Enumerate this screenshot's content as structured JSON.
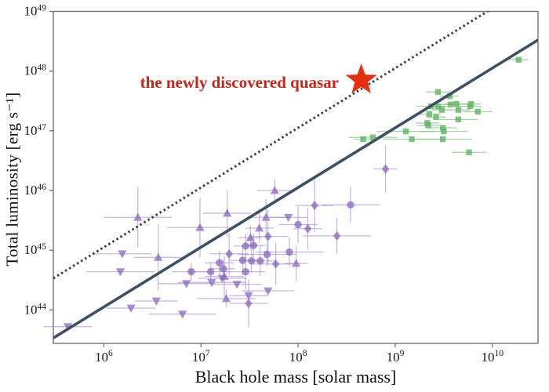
{
  "figure": {
    "background": "#ffffff",
    "axis_color": "#70707a",
    "tick_label_color": "#1a1a1a",
    "text_color": "#111111"
  },
  "chart_data": {
    "type": "scatter",
    "title": "",
    "xlabel": "Black hole mass [solar mass]",
    "ylabel": "Total luminosity [erg s⁻¹]",
    "x_scale": "log",
    "y_scale": "log",
    "xlim_log": [
      5.48,
      10.47
    ],
    "ylim_log": [
      43.44,
      49.0
    ],
    "x_tick_exponents": [
      6,
      7,
      8,
      9,
      10
    ],
    "y_tick_exponents": [
      44,
      45,
      46,
      47,
      48,
      49
    ],
    "grid": false,
    "legend": "none",
    "annotation": {
      "text": "the newly discovered quasar",
      "color": "#cb2315"
    },
    "highlight": {
      "name": "newly-discovered-quasar",
      "marker": "star",
      "logM": 8.65,
      "logL": 47.85,
      "color": "#e62e11",
      "outer_radius": 21
    },
    "reference_lines": [
      {
        "name": "eddington-line",
        "style": "solid",
        "slope": 1,
        "offset_log": 38.05,
        "color": "#3d5165",
        "width": 3.6
      },
      {
        "name": "ten-x-eddington-line",
        "style": "dotted",
        "slope": 1,
        "offset_log": 39.05,
        "color": "#3a4150",
        "width": 3.0
      }
    ],
    "series": [
      {
        "name": "agn-triangle-up",
        "marker": "triangle-up",
        "color": "#8763bb",
        "marker_opacity": 0.72,
        "errorbar_color": "#a18ad0",
        "errorbar_opacity": 0.6,
        "points": [
          [
            6.35,
            45.55,
            0.35,
            0.5
          ],
          [
            6.56,
            44.88,
            0.25,
            0.55
          ],
          [
            6.99,
            45.38,
            0.34,
            0.5
          ],
          [
            7.27,
            45.62,
            0.25,
            0.38
          ],
          [
            7.76,
            46.0,
            0.18,
            0.18
          ],
          [
            7.67,
            45.55,
            0.2,
            0.3
          ],
          [
            7.6,
            45.37,
            0.15,
            0.25
          ],
          [
            7.51,
            45.21,
            0.12,
            0.2
          ],
          [
            7.24,
            44.56,
            0.2,
            0.35
          ],
          [
            7.26,
            44.19,
            0.3,
            0.15
          ],
          [
            7.98,
            44.78,
            0.12,
            0.3
          ]
        ]
      },
      {
        "name": "agn-triangle-down",
        "marker": "triangle-down",
        "color": "#8763bb",
        "marker_opacity": 0.72,
        "errorbar_color": "#a18ad0",
        "errorbar_opacity": 0.6,
        "points": [
          [
            5.63,
            43.72,
            0.25,
            0
          ],
          [
            6.19,
            44.94,
            0.3,
            0
          ],
          [
            6.17,
            44.64,
            0.35,
            0
          ],
          [
            6.28,
            44.03,
            0.25,
            0
          ],
          [
            6.54,
            44.15,
            0.22,
            0
          ],
          [
            6.81,
            43.93,
            0.35,
            0
          ],
          [
            6.85,
            44.44,
            0.3,
            0
          ],
          [
            7.11,
            44.46,
            0.35,
            0
          ],
          [
            7.22,
            44.53,
            0.25,
            0
          ],
          [
            7.69,
            44.32,
            0.27,
            0
          ],
          [
            7.49,
            44.24,
            0.2,
            0
          ],
          [
            7.9,
            45.55,
            0.2,
            0
          ],
          [
            7.37,
            44.43,
            0.25,
            0
          ]
        ]
      },
      {
        "name": "agn-circle",
        "marker": "circle",
        "color": "#8763bb",
        "marker_opacity": 0.72,
        "errorbar_color": "#a18ad0",
        "errorbar_opacity": 0.6,
        "points": [
          [
            6.9,
            44.64,
            0.2,
            0.15
          ],
          [
            7.1,
            44.64,
            0.2,
            0.15
          ],
          [
            7.19,
            44.79,
            0.15,
            0.2
          ],
          [
            7.23,
            44.69,
            0.12,
            0.15
          ],
          [
            7.43,
            44.83,
            0.15,
            0.25
          ],
          [
            7.46,
            45.07,
            0.12,
            0.2
          ],
          [
            7.46,
            44.64,
            0.2,
            0.3
          ],
          [
            7.52,
            44.82,
            0.12,
            0.2
          ],
          [
            7.54,
            45.08,
            0.12,
            0.2
          ],
          [
            7.61,
            44.82,
            0.15,
            0.25
          ],
          [
            7.68,
            44.93,
            0.3,
            0.2
          ],
          [
            7.91,
            44.97,
            0.35,
            0.25
          ],
          [
            8.54,
            45.76,
            0.3,
            0.3
          ],
          [
            8.0,
            45.43,
            0.2,
            0.3
          ]
        ]
      },
      {
        "name": "agn-diamond",
        "marker": "diamond",
        "color": "#8763bb",
        "marker_opacity": 0.72,
        "errorbar_color": "#a18ad0",
        "errorbar_opacity": 0.6,
        "points": [
          [
            7.29,
            44.94,
            0.2,
            0.35
          ],
          [
            7.69,
            45.23,
            0.2,
            0.45
          ],
          [
            7.77,
            44.77,
            0.25,
            0.35
          ],
          [
            7.49,
            44.11,
            0.2,
            0.4
          ],
          [
            8.17,
            45.75,
            0.2,
            0.45
          ],
          [
            8.1,
            45.36,
            0.15,
            0.35
          ],
          [
            8.4,
            45.24,
            0.35,
            0.3
          ],
          [
            8.9,
            46.36,
            0.12,
            0.4
          ]
        ]
      },
      {
        "name": "luminous-quasars-square",
        "marker": "square",
        "color": "#5eb561",
        "marker_opacity": 0.8,
        "errorbar_color": "#7ec580",
        "errorbar_opacity": 0.7,
        "points": [
          [
            10.27,
            48.19,
            0.1,
            0
          ],
          [
            9.44,
            47.65,
            0.12,
            0
          ],
          [
            9.56,
            47.58,
            0.1,
            0
          ],
          [
            9.63,
            47.45,
            0.12,
            0
          ],
          [
            9.78,
            47.45,
            0.1,
            0
          ],
          [
            9.37,
            47.41,
            0.15,
            0
          ],
          [
            9.44,
            47.41,
            0.1,
            0
          ],
          [
            9.57,
            47.44,
            0.1,
            0
          ],
          [
            9.65,
            47.35,
            0.12,
            0
          ],
          [
            9.77,
            47.41,
            0.12,
            0
          ],
          [
            9.85,
            47.32,
            0.15,
            0
          ],
          [
            9.48,
            47.35,
            0.1,
            0
          ],
          [
            9.35,
            47.28,
            0.12,
            0
          ],
          [
            9.42,
            47.23,
            0.1,
            0
          ],
          [
            9.65,
            47.19,
            0.2,
            0
          ],
          [
            9.33,
            47.13,
            0.12,
            0
          ],
          [
            9.34,
            47.09,
            0.12,
            0
          ],
          [
            9.49,
            47.05,
            0.15,
            0
          ],
          [
            9.11,
            46.99,
            0.3,
            0
          ],
          [
            9.5,
            46.99,
            0.25,
            0
          ],
          [
            8.67,
            46.86,
            0.1,
            0
          ],
          [
            8.77,
            46.89,
            0.25,
            0
          ],
          [
            9.17,
            46.86,
            0.3,
            0
          ],
          [
            9.49,
            46.86,
            0.3,
            0
          ],
          [
            9.76,
            46.64,
            0.18,
            0
          ]
        ]
      }
    ]
  }
}
